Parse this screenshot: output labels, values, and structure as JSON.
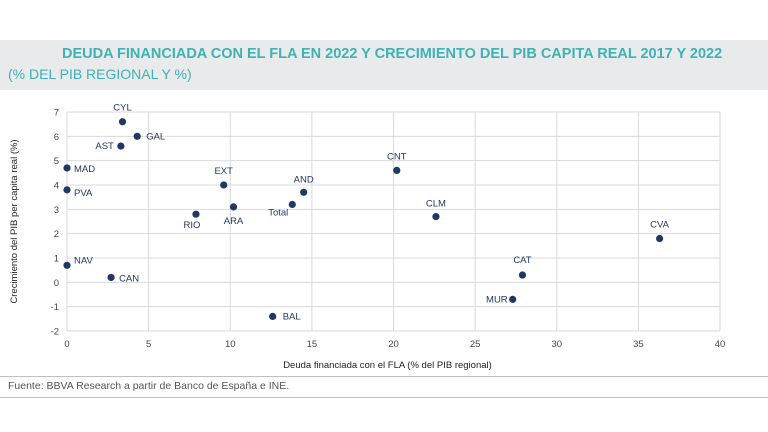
{
  "header": {
    "title": "DEUDA FINANCIADA CON EL FLA EN 2022 Y CRECIMIENTO DEL PIB CAPITA REAL 2017 Y 2022",
    "subtitle": "(% DEL PIB REGIONAL Y %)"
  },
  "footer": {
    "source": "Fuente: BBVA Research a partir de Banco de España e INE."
  },
  "colors": {
    "accent": "#3fb2b3",
    "marker": "#1f3864",
    "grid": "#d9d9d9"
  },
  "chart_data": {
    "type": "scatter",
    "xlabel": "Deuda financiada con el FLA (% del PIB regional)",
    "ylabel": "Crecimiento del PIB per capita real (%)",
    "xlim": [
      0,
      40
    ],
    "ylim": [
      -2,
      7
    ],
    "xticks": [
      0,
      5,
      10,
      15,
      20,
      25,
      30,
      35,
      40
    ],
    "yticks": [
      -2,
      -1,
      0,
      1,
      2,
      3,
      4,
      5,
      6,
      7
    ],
    "grid": true,
    "points": [
      {
        "label": "CYL",
        "x": 3.4,
        "y": 6.6
      },
      {
        "label": "GAL",
        "x": 4.3,
        "y": 6.0
      },
      {
        "label": "AST",
        "x": 3.3,
        "y": 5.6
      },
      {
        "label": "MAD",
        "x": 0.0,
        "y": 4.7
      },
      {
        "label": "PVA",
        "x": 0.0,
        "y": 3.8
      },
      {
        "label": "EXT",
        "x": 9.6,
        "y": 4.0
      },
      {
        "label": "AND",
        "x": 14.5,
        "y": 3.7
      },
      {
        "label": "Total",
        "x": 13.8,
        "y": 3.2
      },
      {
        "label": "ARA",
        "x": 10.2,
        "y": 3.1
      },
      {
        "label": "RIO",
        "x": 7.9,
        "y": 2.8
      },
      {
        "label": "CNT",
        "x": 20.2,
        "y": 4.6
      },
      {
        "label": "CLM",
        "x": 22.6,
        "y": 2.7
      },
      {
        "label": "CVA",
        "x": 36.3,
        "y": 1.8
      },
      {
        "label": "NAV",
        "x": 0.0,
        "y": 0.7
      },
      {
        "label": "CAN",
        "x": 2.7,
        "y": 0.2
      },
      {
        "label": "CAT",
        "x": 27.9,
        "y": 0.3
      },
      {
        "label": "MUR",
        "x": 27.3,
        "y": -0.7
      },
      {
        "label": "BAL",
        "x": 12.6,
        "y": -1.4
      }
    ]
  }
}
